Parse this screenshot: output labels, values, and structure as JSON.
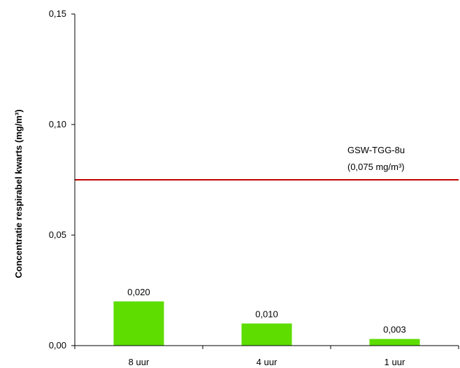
{
  "chart_data": {
    "type": "bar",
    "categories": [
      "8 uur",
      "4 uur",
      "1 uur"
    ],
    "values": [
      0.02,
      0.01,
      0.003
    ],
    "data_labels": [
      "0,020",
      "0,010",
      "0,003"
    ],
    "ylabel": "Concentratie respirabel kwarts (mg/m³)",
    "ylim": [
      0,
      0.15
    ],
    "yticks": [
      0,
      0.05,
      0.1,
      0.15
    ],
    "ytick_labels": [
      "0,00",
      "0,05",
      "0,10",
      "0,15"
    ],
    "grid": false,
    "legend": "none",
    "bar_color": "#5ddd00",
    "reference_line": {
      "value": 0.075,
      "color": "#c00000",
      "label_line1": "GSW-TGG-8u",
      "label_line2": "(0,075 mg/m³)"
    }
  }
}
